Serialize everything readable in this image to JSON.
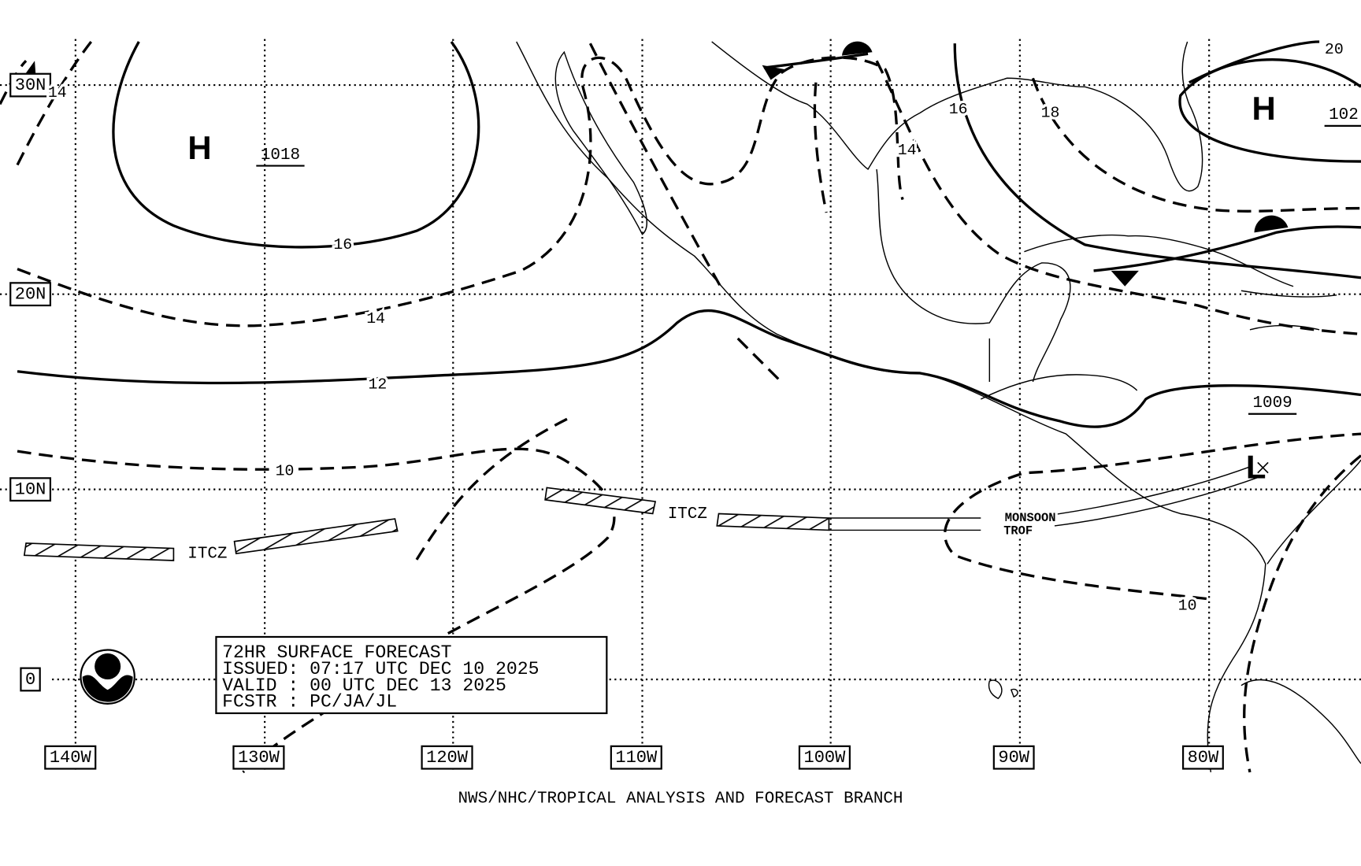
{
  "map": {
    "lat_labels": [
      "30N",
      "20N",
      "10N",
      "0"
    ],
    "lon_labels": [
      "140W",
      "130W",
      "120W",
      "110W",
      "100W",
      "90W",
      "80W"
    ],
    "isobar_labels": [
      "14",
      "16",
      "14",
      "12",
      "10",
      "16",
      "18",
      "14",
      "10",
      "20"
    ],
    "pressure_centers": [
      {
        "letter": "H",
        "value": "1018"
      },
      {
        "letter": "H",
        "value": "102"
      },
      {
        "letter": "L",
        "value": "1009"
      }
    ],
    "features": [
      "ITCZ",
      "ITCZ",
      "MONSOON",
      "TROF"
    ]
  },
  "info_box": {
    "lines": [
      "72HR SURFACE FORECAST",
      "ISSUED: 07:17 UTC DEC 10 2025",
      "VALID : 00 UTC DEC 13 2025",
      "FCSTR : PC/JA/JL"
    ]
  },
  "footer": "NWS/NHC/TROPICAL ANALYSIS AND FORECAST BRANCH"
}
